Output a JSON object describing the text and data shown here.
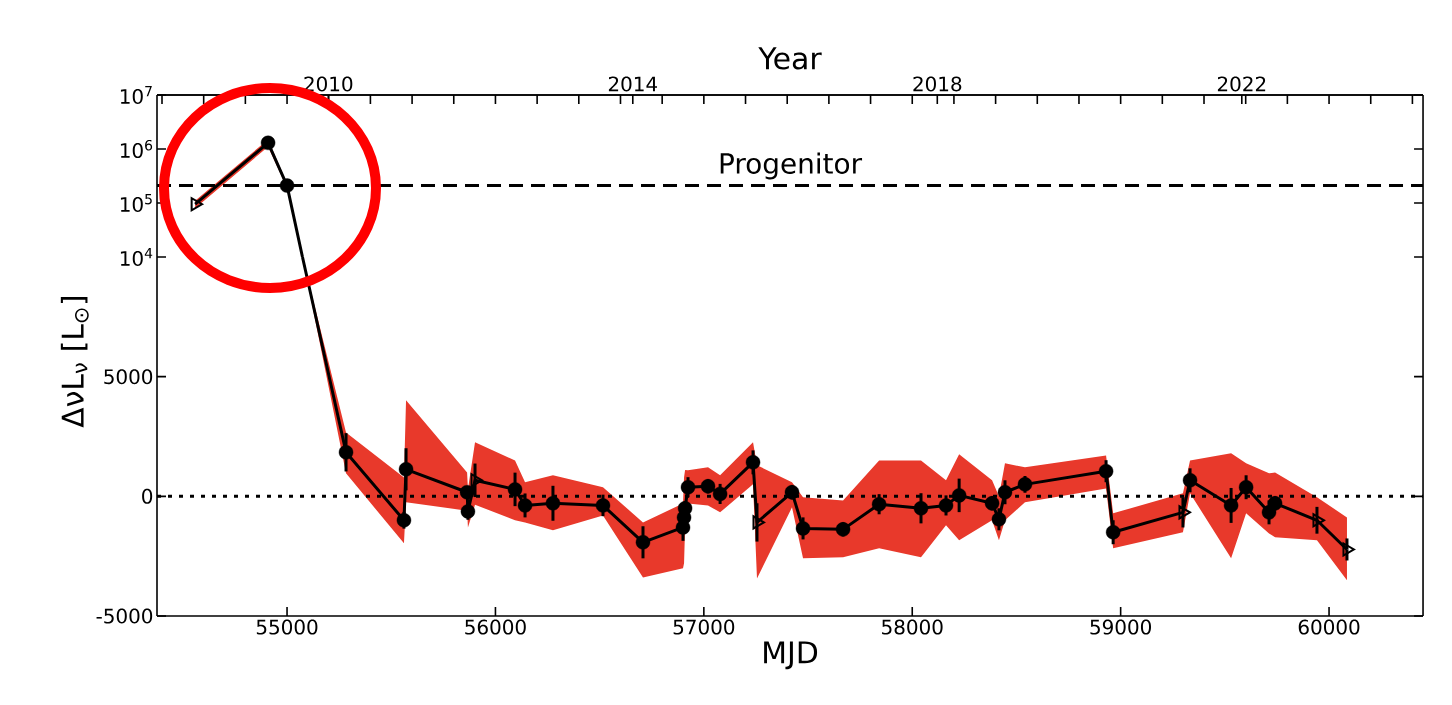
{
  "chart_data": [
    {
      "type": "line",
      "log": "y",
      "tick_labels": "y",
      "x2label": "Year",
      "xlim": [
        54376,
        60451
      ],
      "x2lim": [
        2007.75,
        2024.38
      ],
      "x2ticks": [
        2010,
        2014,
        2018,
        2022
      ],
      "ylim": [
        10000,
        10000000
      ],
      "yticks": [
        {
          "value": 10000,
          "label": "10$^{4}$"
        },
        {
          "value": 100000,
          "label": "10$^{5}$"
        },
        {
          "value": 1000000,
          "label": "10$^{6}$"
        },
        {
          "value": 10000000,
          "label": "10$^{7}$"
        }
      ],
      "ref_lines": [
        {
          "axis": "y",
          "value": 210000,
          "label": "Progenitor",
          "line_style": "dashed",
          "color": "#000000"
        }
      ],
      "series": [
        {
          "color": "#000000",
          "marker": "none",
          "line_style": "solid",
          "x": [
            54559,
            54909,
            55000,
            55074
          ],
          "values": [
            95000,
            1300000,
            210000,
            10000
          ],
          "lower": [
            80000,
            1100000,
            190000,
            10000
          ],
          "upper": [
            110000,
            1500000,
            230000,
            10000
          ]
        },
        {
          "type": "scatter",
          "color": "#000000",
          "marker": "circle",
          "x": [
            54909,
            55000
          ],
          "values": [
            1300000,
            210000
          ]
        },
        {
          "type": "scatter",
          "color": "#000000",
          "marker": "triangle",
          "x": [
            54559
          ],
          "values": [
            95000
          ]
        }
      ]
    },
    {
      "type": "line",
      "xlabel": "MJD",
      "ylabel": "ΔνL$_{ν}$ [L$_{⊙}$]",
      "xlim": [
        54376,
        60451
      ],
      "xticks": [
        55000,
        56000,
        57000,
        58000,
        59000,
        60000
      ],
      "ylim": [
        -5000,
        10000
      ],
      "yticks": [
        -5000,
        0,
        5000
      ],
      "ref_lines": [
        {
          "axis": "y",
          "value": 0,
          "line_style": "dotted",
          "color": "#000000"
        }
      ],
      "series": [
        {
          "color": "#000000",
          "marker": "none",
          "line_style": "solid",
          "x": [
            55074,
            55283,
            55561,
            55571,
            55864,
            55868,
            55902,
            56094,
            56142,
            56276,
            56516,
            56708,
            56900,
            56905,
            56910,
            56924,
            57020,
            57078,
            57236,
            57255,
            57423,
            57476,
            57668,
            57841,
            58042,
            58162,
            58225,
            58383,
            58416,
            58445,
            58541,
            58930,
            58964,
            59299,
            59333,
            59530,
            59602,
            59712,
            59741,
            59942,
            60086
          ],
          "values": [
            10000,
            1840,
            -1000,
            1130,
            170,
            -630,
            670,
            290,
            -380,
            -290,
            -380,
            -1920,
            -1300,
            -880,
            -500,
            380,
            420,
            100,
            1420,
            -1090,
            170,
            -1340,
            -1380,
            -330,
            -500,
            -380,
            40,
            -290,
            -960,
            170,
            500,
            1050,
            -1500,
            -670,
            670,
            -380,
            380,
            -670,
            -290,
            -1000,
            -2220
          ],
          "lower": [
            10000,
            960,
            -1960,
            -250,
            -600,
            -1300,
            -350,
            -1000,
            -1090,
            -1420,
            -800,
            -3390,
            -3010,
            -2800,
            -1300,
            -300,
            -380,
            -670,
            500,
            -3430,
            -460,
            -2590,
            -2550,
            -2170,
            -2550,
            -1210,
            -1840,
            -1000,
            -1840,
            -1000,
            -250,
            330,
            -2170,
            -1500,
            130,
            -2590,
            -710,
            -1550,
            -1710,
            -1840,
            -3510
          ],
          "upper": [
            10000,
            2670,
            790,
            4010,
            1000,
            300,
            2260,
            1500,
            590,
            880,
            380,
            -1090,
            -300,
            800,
            1100,
            1090,
            1210,
            880,
            2260,
            1300,
            590,
            -40,
            -170,
            1500,
            1500,
            670,
            1760,
            670,
            0,
            1380,
            1210,
            1710,
            -710,
            130,
            1500,
            1800,
            1380,
            960,
            1000,
            -40,
            -880
          ]
        },
        {
          "type": "scatter",
          "color": "#000000",
          "marker": "circle",
          "x": [
            55283,
            55561,
            55571,
            55864,
            55868,
            56094,
            56142,
            56276,
            56516,
            56708,
            56900,
            56905,
            56910,
            56924,
            57020,
            57078,
            57236,
            57423,
            57476,
            57668,
            57841,
            58042,
            58162,
            58225,
            58383,
            58416,
            58445,
            58541,
            58930,
            58964,
            59333,
            59530,
            59602,
            59712,
            59741
          ],
          "values": [
            1840,
            -1000,
            1130,
            170,
            -630,
            290,
            -380,
            -290,
            -380,
            -1920,
            -1300,
            -880,
            -500,
            380,
            420,
            100,
            1420,
            170,
            -1340,
            -1380,
            -330,
            -500,
            -380,
            40,
            -290,
            -960,
            170,
            500,
            1050,
            -1500,
            670,
            -380,
            380,
            -670,
            -290
          ],
          "errors": [
            800,
            350,
            880,
            null,
            350,
            700,
            500,
            730,
            450,
            670,
            560,
            300,
            300,
            420,
            300,
            420,
            500,
            300,
            460,
            300,
            420,
            630,
            420,
            700,
            300,
            460,
            500,
            350,
            460,
            500,
            500,
            730,
            500,
            500,
            300
          ]
        },
        {
          "type": "scatter",
          "color": "#000000",
          "marker": "triangle",
          "x": [
            55902,
            57255,
            59299,
            59942,
            60086
          ],
          "values": [
            670,
            -1090,
            -670,
            -1000,
            -2220
          ],
          "errors": [
            700,
            800,
            630,
            560,
            460
          ]
        }
      ]
    }
  ]
}
